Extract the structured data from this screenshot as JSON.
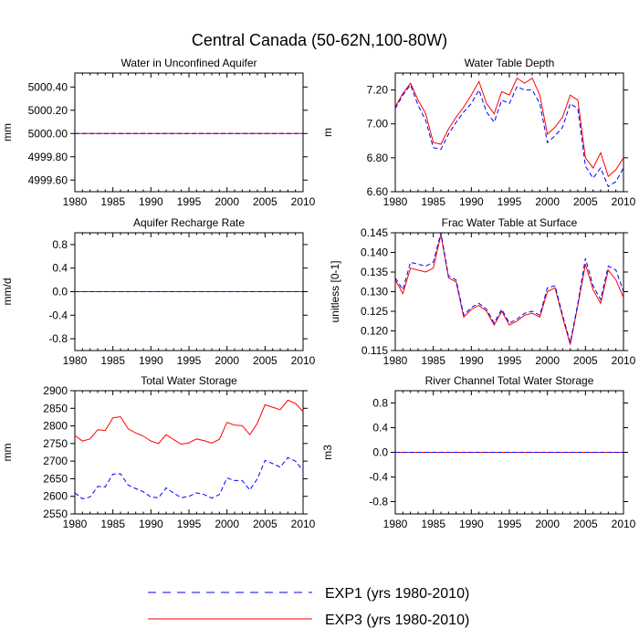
{
  "figure_title": "Central Canada (50-62N,100-80W)",
  "legend": [
    {
      "key": "exp1",
      "label": "EXP1 (yrs 1980-2010)",
      "color": "#0000ff",
      "style": "dashed"
    },
    {
      "key": "exp3",
      "label": "EXP3 (yrs 1980-2010)",
      "color": "#ff0000",
      "style": "solid"
    }
  ],
  "chart_data": [
    {
      "id": "p1",
      "type": "line",
      "title": "Water in Unconfined Aquifer",
      "ylabel": "mm",
      "xlabel": "",
      "xlim": [
        1980,
        2010
      ],
      "xticks": [
        "1980",
        "1985",
        "1990",
        "1995",
        "2000",
        "2005",
        "2010"
      ],
      "ylim": [
        4999.5,
        5000.52
      ],
      "yticks": [
        "4999.60",
        "4999.80",
        "5000.00",
        "5000.20",
        "5000.40"
      ],
      "ytick_values": [
        4999.6,
        4999.8,
        5000.0,
        5000.2,
        5000.4
      ],
      "x": [
        1980,
        2010
      ],
      "series": [
        {
          "name": "EXP3 (yrs 1980-2010)",
          "color": "#ff0000",
          "style": "solid",
          "values": [
            5000.0,
            5000.0
          ]
        },
        {
          "name": "EXP1 (yrs 1980-2010)",
          "color": "#0000ff",
          "style": "dashed",
          "values": [
            5000.0,
            5000.0
          ]
        }
      ]
    },
    {
      "id": "p2",
      "type": "line",
      "title": "Water Table Depth",
      "ylabel": "m",
      "xlabel": "",
      "xlim": [
        1980,
        2010
      ],
      "xticks": [
        "1980",
        "1985",
        "1990",
        "1995",
        "2000",
        "2005",
        "2010"
      ],
      "ylim": [
        6.6,
        7.3
      ],
      "yticks": [
        "6.60",
        "6.80",
        "7.00",
        "7.20"
      ],
      "ytick_values": [
        6.6,
        6.8,
        7.0,
        7.2
      ],
      "x": [
        1980,
        1981,
        1982,
        1983,
        1984,
        1985,
        1986,
        1987,
        1988,
        1989,
        1990,
        1991,
        1992,
        1993,
        1994,
        1995,
        1996,
        1997,
        1998,
        1999,
        2000,
        2001,
        2002,
        2003,
        2004,
        2005,
        2006,
        2007,
        2008,
        2009,
        2010
      ],
      "series": [
        {
          "name": "EXP3 (yrs 1980-2010)",
          "color": "#ff0000",
          "style": "solid",
          "values": [
            7.1,
            7.18,
            7.24,
            7.14,
            7.06,
            6.89,
            6.88,
            6.97,
            7.04,
            7.1,
            7.17,
            7.25,
            7.12,
            7.06,
            7.19,
            7.17,
            7.27,
            7.24,
            7.27,
            7.17,
            6.94,
            6.98,
            7.04,
            7.17,
            7.14,
            6.8,
            6.74,
            6.83,
            6.69,
            6.73,
            6.8
          ]
        },
        {
          "name": "EXP1 (yrs 1980-2010)",
          "color": "#0000ff",
          "style": "dashed",
          "values": [
            7.09,
            7.17,
            7.23,
            7.11,
            7.02,
            6.86,
            6.85,
            6.94,
            7.01,
            7.07,
            7.12,
            7.2,
            7.07,
            7.01,
            7.14,
            7.12,
            7.22,
            7.2,
            7.2,
            7.12,
            6.89,
            6.93,
            6.98,
            7.12,
            7.09,
            6.75,
            6.68,
            6.74,
            6.63,
            6.66,
            6.74
          ]
        }
      ]
    },
    {
      "id": "p3",
      "type": "line",
      "title": "Aquifer Recharge Rate",
      "ylabel": "mm/d",
      "xlabel": "",
      "xlim": [
        1980,
        2010
      ],
      "xticks": [
        "1980",
        "1985",
        "1990",
        "1995",
        "2000",
        "2005",
        "2010"
      ],
      "ylim": [
        -1.0,
        1.0
      ],
      "yticks": [
        "-0.8",
        "-0.4",
        "0.0",
        "0.4",
        "0.8"
      ],
      "ytick_values": [
        -0.8,
        -0.4,
        0.0,
        0.4,
        0.8
      ],
      "x": [
        1980,
        2010
      ],
      "series": [
        {
          "name": "EXP3 (yrs 1980-2010)",
          "color": "#ff0000",
          "style": "solid",
          "values": [
            0.0,
            0.0
          ]
        },
        {
          "name": "EXP1 (yrs 1980-2010)",
          "color": "#0000ff",
          "style": "dashed",
          "values": [
            0.0,
            0.0
          ]
        }
      ]
    },
    {
      "id": "p4",
      "type": "line",
      "title": "Frac Water Table at Surface",
      "ylabel": "unitless [0-1]",
      "xlabel": "",
      "xlim": [
        1980,
        2010
      ],
      "xticks": [
        "1980",
        "1985",
        "1990",
        "1995",
        "2000",
        "2005",
        "2010"
      ],
      "ylim": [
        0.115,
        0.145
      ],
      "yticks": [
        "0.115",
        "0.120",
        "0.125",
        "0.130",
        "0.135",
        "0.140",
        "0.145"
      ],
      "ytick_values": [
        0.115,
        0.12,
        0.125,
        0.13,
        0.135,
        0.14,
        0.145
      ],
      "x": [
        1980,
        1981,
        1982,
        1983,
        1984,
        1985,
        1986,
        1987,
        1988,
        1989,
        1990,
        1991,
        1992,
        1993,
        1994,
        1995,
        1996,
        1997,
        1998,
        1999,
        2000,
        2001,
        2002,
        2003,
        2004,
        2005,
        2006,
        2007,
        2008,
        2009,
        2010
      ],
      "series": [
        {
          "name": "EXP3 (yrs 1980-2010)",
          "color": "#ff0000",
          "style": "solid",
          "values": [
            0.133,
            0.1295,
            0.136,
            0.1355,
            0.135,
            0.136,
            0.1445,
            0.1335,
            0.1325,
            0.1235,
            0.1255,
            0.1265,
            0.125,
            0.1215,
            0.125,
            0.1215,
            0.1225,
            0.124,
            0.1245,
            0.1235,
            0.13,
            0.131,
            0.1235,
            0.1165,
            0.1265,
            0.137,
            0.1305,
            0.127,
            0.1355,
            0.133,
            0.1285
          ]
        },
        {
          "name": "EXP1 (yrs 1980-2010)",
          "color": "#0000ff",
          "style": "dashed",
          "values": [
            0.1335,
            0.1305,
            0.1375,
            0.137,
            0.1365,
            0.1375,
            0.145,
            0.134,
            0.133,
            0.124,
            0.126,
            0.127,
            0.1255,
            0.122,
            0.1255,
            0.122,
            0.123,
            0.1245,
            0.125,
            0.124,
            0.131,
            0.1315,
            0.124,
            0.117,
            0.127,
            0.1385,
            0.1315,
            0.128,
            0.1365,
            0.1355,
            0.13
          ]
        }
      ]
    },
    {
      "id": "p5",
      "type": "line",
      "title": "Total Water Storage",
      "ylabel": "mm",
      "xlabel": "",
      "xlim": [
        1980,
        2010
      ],
      "xticks": [
        "1980",
        "1985",
        "1990",
        "1995",
        "2000",
        "2005",
        "2010"
      ],
      "ylim": [
        2550,
        2900
      ],
      "yticks": [
        "2550",
        "2600",
        "2650",
        "2700",
        "2750",
        "2800",
        "2850",
        "2900"
      ],
      "ytick_values": [
        2550,
        2600,
        2650,
        2700,
        2750,
        2800,
        2850,
        2900
      ],
      "x": [
        1980,
        1981,
        1982,
        1983,
        1984,
        1985,
        1986,
        1987,
        1988,
        1989,
        1990,
        1991,
        1992,
        1993,
        1994,
        1995,
        1996,
        1997,
        1998,
        1999,
        2000,
        2001,
        2002,
        2003,
        2004,
        2005,
        2006,
        2007,
        2008,
        2009,
        2010
      ],
      "series": [
        {
          "name": "EXP3 (yrs 1980-2010)",
          "color": "#ff0000",
          "style": "solid",
          "values": [
            2773,
            2757,
            2763,
            2789,
            2787,
            2823,
            2826,
            2792,
            2780,
            2771,
            2757,
            2750,
            2775,
            2761,
            2748,
            2752,
            2763,
            2758,
            2751,
            2762,
            2810,
            2802,
            2801,
            2775,
            2808,
            2860,
            2853,
            2846,
            2873,
            2864,
            2840
          ]
        },
        {
          "name": "EXP1 (yrs 1980-2010)",
          "color": "#0000ff",
          "style": "dashed",
          "values": [
            2610,
            2593,
            2598,
            2628,
            2627,
            2663,
            2664,
            2632,
            2622,
            2613,
            2598,
            2596,
            2624,
            2609,
            2596,
            2600,
            2610,
            2605,
            2595,
            2605,
            2652,
            2645,
            2645,
            2618,
            2650,
            2702,
            2693,
            2683,
            2710,
            2700,
            2673
          ]
        }
      ]
    },
    {
      "id": "p6",
      "type": "line",
      "title": "River Channel Total Water Storage",
      "ylabel": "m3",
      "xlabel": "",
      "xlim": [
        1980,
        2010
      ],
      "xticks": [
        "1980",
        "1985",
        "1990",
        "1995",
        "2000",
        "2005",
        "2010"
      ],
      "ylim": [
        -1.0,
        1.0
      ],
      "yticks": [
        "-0.8",
        "-0.4",
        "0.0",
        "0.4",
        "0.8"
      ],
      "ytick_values": [
        -0.8,
        -0.4,
        0.0,
        0.4,
        0.8
      ],
      "x": [
        1980,
        2010
      ],
      "series": [
        {
          "name": "EXP3 (yrs 1980-2010)",
          "color": "#ff0000",
          "style": "solid",
          "values": [
            0.0,
            0.0
          ]
        },
        {
          "name": "EXP1 (yrs 1980-2010)",
          "color": "#0000ff",
          "style": "dashed",
          "values": [
            0.0,
            0.0
          ]
        }
      ]
    }
  ]
}
